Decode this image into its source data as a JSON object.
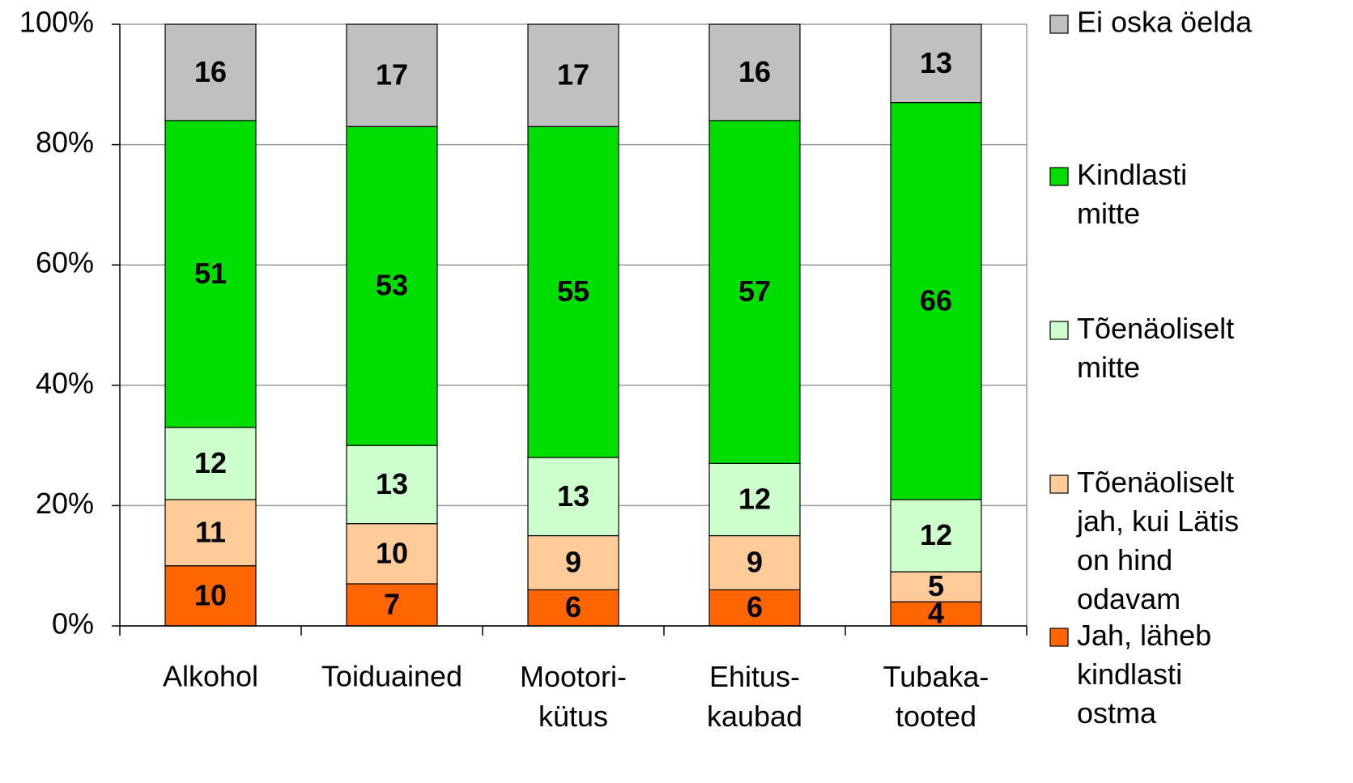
{
  "chart_data": {
    "type": "stacked_bar",
    "categories": [
      "Alkohol",
      "Toiduained",
      "Mootori-\nkütus",
      "Ehitus-\nkaubad",
      "Tubaka-\ntooted"
    ],
    "series": [
      {
        "name": "Jah, läheb\nkindlasti\nostma",
        "color": "#ff6600",
        "values": [
          10,
          7,
          6,
          6,
          4
        ]
      },
      {
        "name": "Tõenäoliselt\njah, kui Lätis\non hind\nodavam",
        "color": "#ffcc99",
        "values": [
          11,
          10,
          9,
          9,
          5
        ]
      },
      {
        "name": "Tõenäoliselt\nmitte",
        "color": "#ccffcc",
        "values": [
          12,
          13,
          13,
          12,
          12
        ]
      },
      {
        "name": "Kindlasti\nmitte",
        "color": "#00dd00",
        "values": [
          51,
          53,
          55,
          57,
          66
        ]
      },
      {
        "name": "Ei oska öelda",
        "color": "#c0c0c0",
        "values": [
          16,
          17,
          17,
          16,
          13
        ]
      }
    ],
    "ylim": [
      0,
      100
    ],
    "yticks": [
      {
        "value": 0,
        "label": "0%"
      },
      {
        "value": 20,
        "label": "20%"
      },
      {
        "value": 40,
        "label": "40%"
      },
      {
        "value": 60,
        "label": "60%"
      },
      {
        "value": 80,
        "label": "80%"
      },
      {
        "value": 100,
        "label": "100%"
      }
    ],
    "grid": true,
    "legend": "right"
  }
}
